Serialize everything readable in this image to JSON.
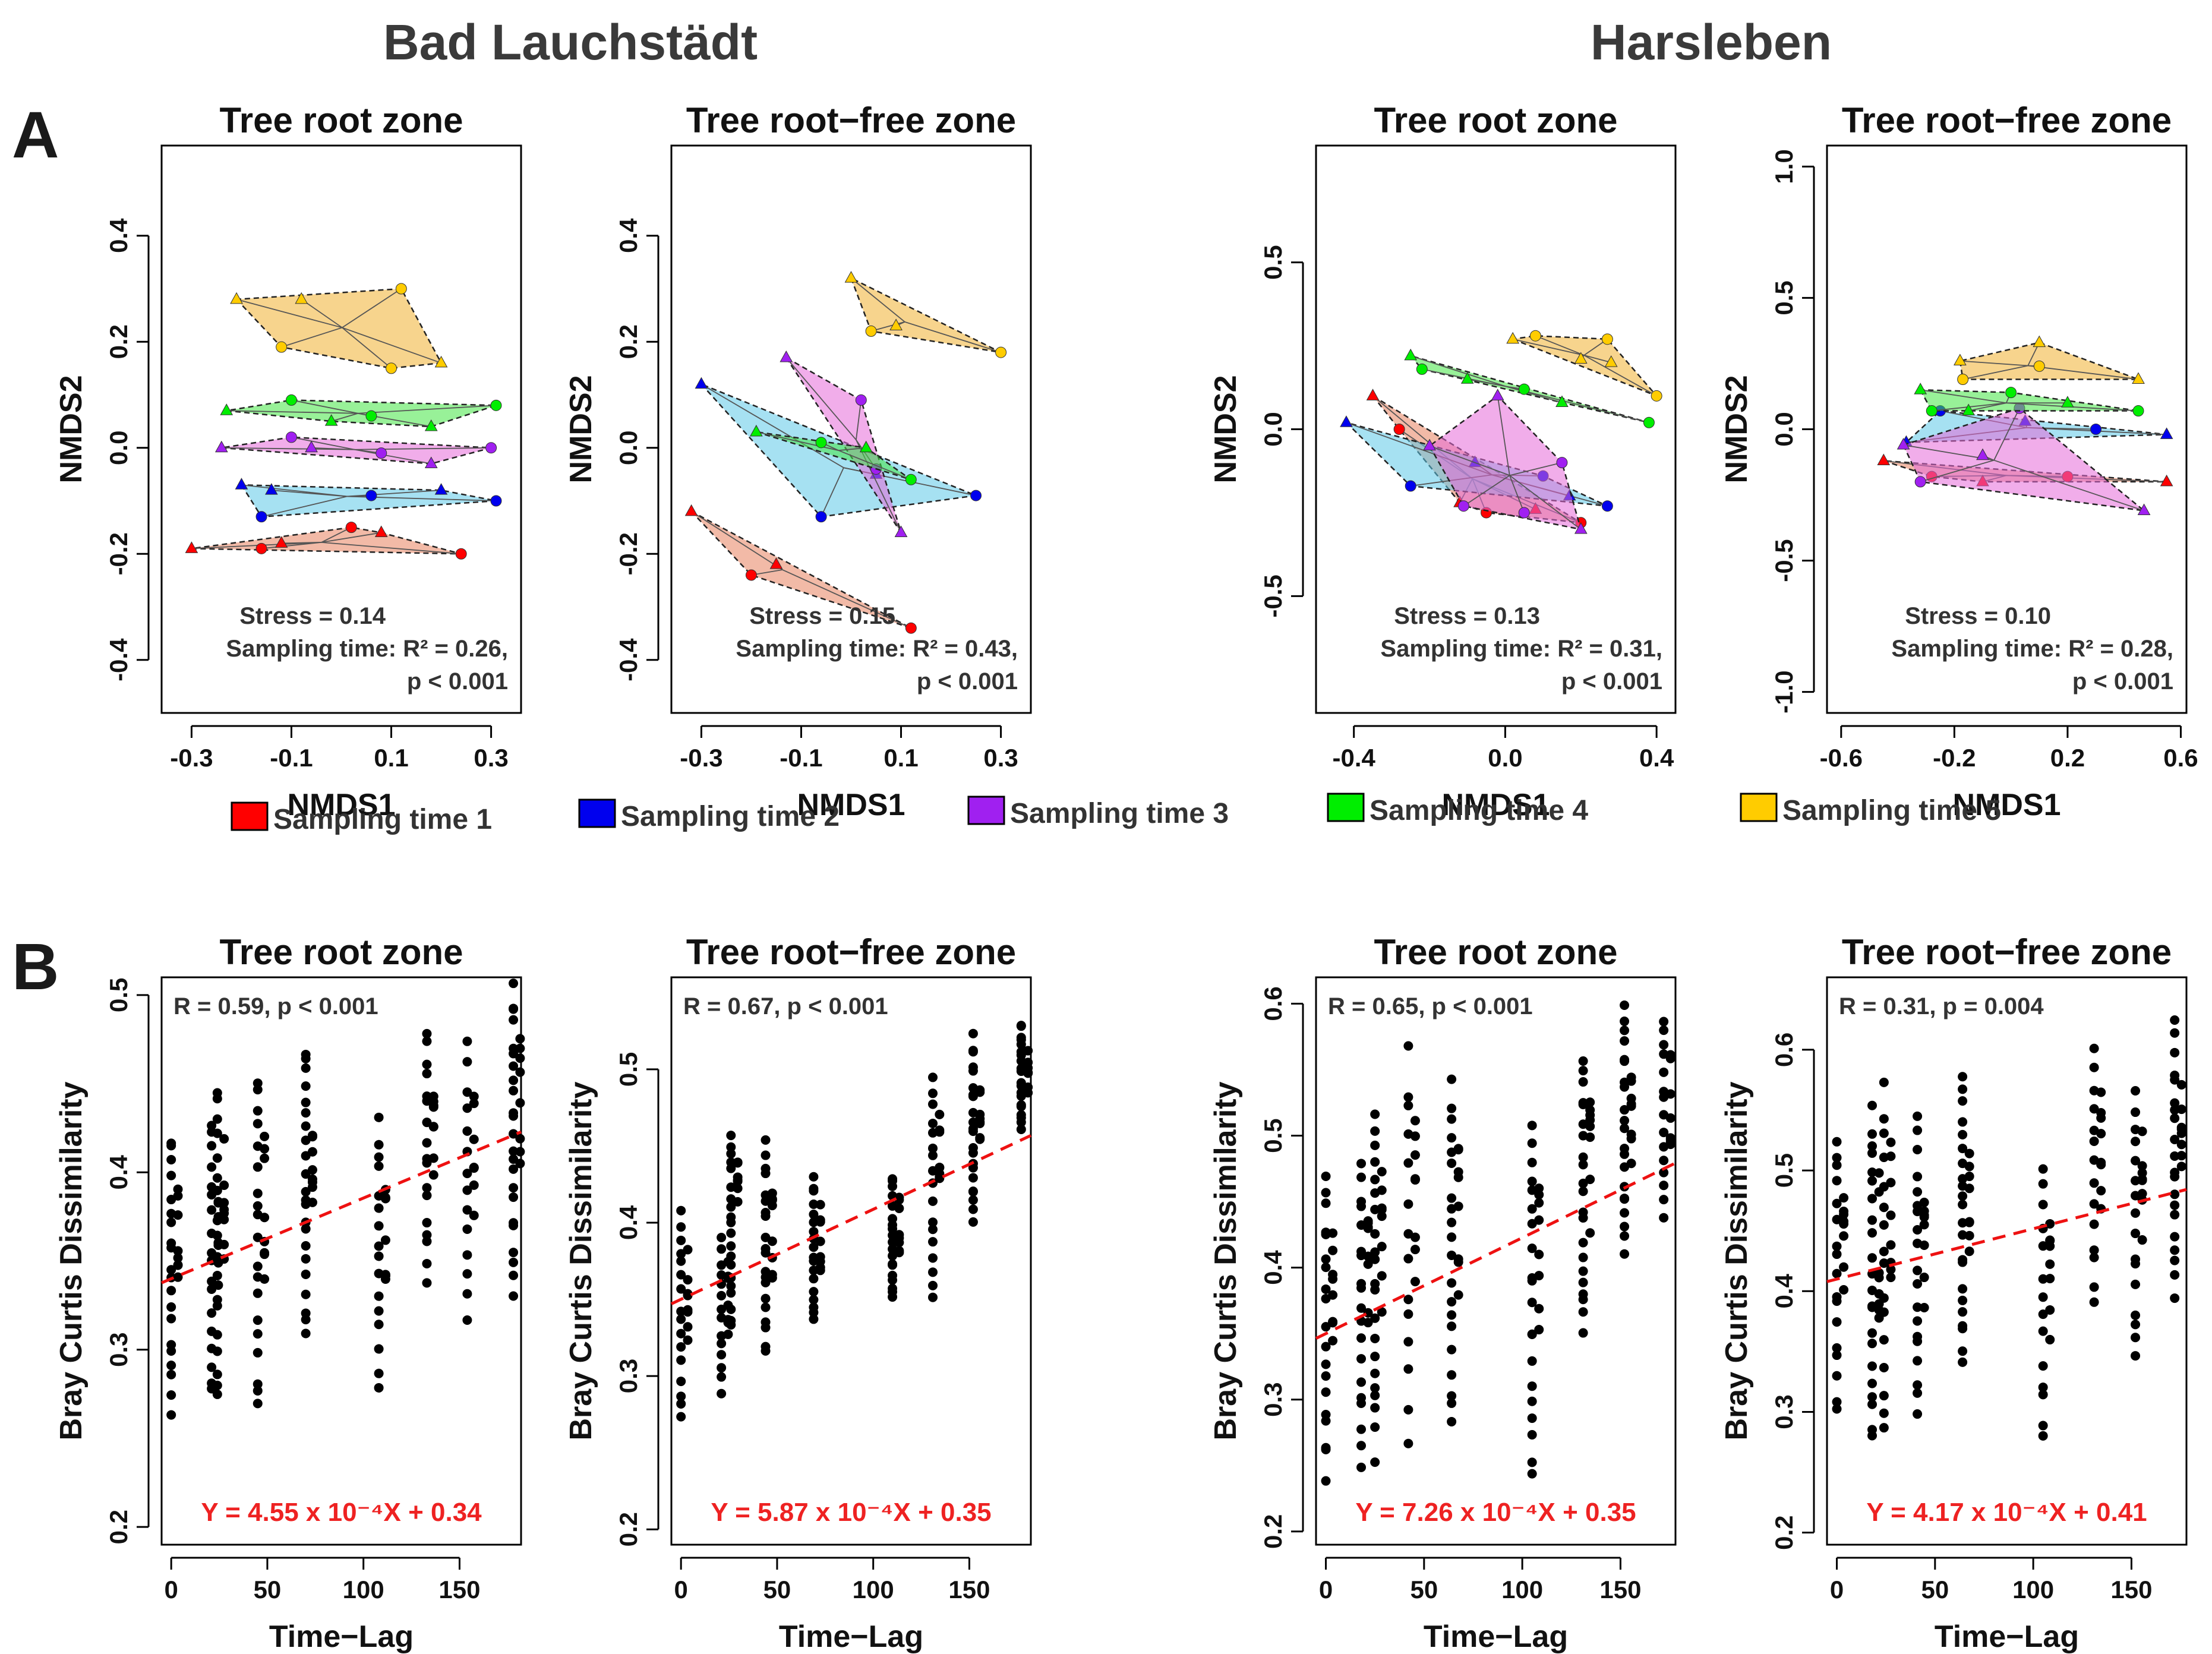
{
  "sites": [
    "Bad Lauchstädt",
    "Harsleben"
  ],
  "row_labels": [
    "A",
    "B"
  ],
  "legend": [
    {
      "label": "Sampling time 1",
      "color": "#ff0000"
    },
    {
      "label": "Sampling time 2",
      "color": "#0000ee"
    },
    {
      "label": "Sampling time 3",
      "color": "#a020f0"
    },
    {
      "label": "Sampling time 4",
      "color": "#00ee00"
    },
    {
      "label": "Sampling time 5",
      "color": "#ffcc00"
    }
  ],
  "chart_data": [
    {
      "id": "A1",
      "type": "scatter",
      "site": "Bad Lauchstädt",
      "title": "Tree root zone",
      "xlabel": "NMDS1",
      "ylabel": "NMDS2",
      "xlim": [
        -0.36,
        0.36
      ],
      "ylim": [
        -0.5,
        0.57
      ],
      "xticks": [
        "-0.3",
        "-0.1",
        "0.1",
        "0.3"
      ],
      "xtick_values": [
        -0.3,
        -0.1,
        0.1,
        0.3
      ],
      "yticks": [
        "-0.4",
        "-0.2",
        "0.0",
        "0.2",
        "0.4"
      ],
      "ytick_values": [
        -0.4,
        -0.2,
        0.0,
        0.2,
        0.4
      ],
      "stress_text": "Stress = 0.14",
      "sampling_text": "Sampling time: R² = 0.26,",
      "p_text": "p < 0.001",
      "series": [
        {
          "name": "Sampling time 1",
          "points": [
            [
              -0.3,
              -0.19
            ],
            [
              -0.16,
              -0.19
            ],
            [
              -0.12,
              -0.18
            ],
            [
              0.02,
              -0.15
            ],
            [
              0.08,
              -0.16
            ],
            [
              0.24,
              -0.2
            ]
          ]
        },
        {
          "name": "Sampling time 2",
          "points": [
            [
              -0.2,
              -0.07
            ],
            [
              -0.16,
              -0.13
            ],
            [
              -0.14,
              -0.08
            ],
            [
              0.06,
              -0.09
            ],
            [
              0.2,
              -0.08
            ],
            [
              0.31,
              -0.1
            ]
          ]
        },
        {
          "name": "Sampling time 3",
          "points": [
            [
              -0.24,
              0.0
            ],
            [
              -0.1,
              0.02
            ],
            [
              -0.06,
              0.0
            ],
            [
              0.08,
              -0.01
            ],
            [
              0.18,
              -0.03
            ],
            [
              0.3,
              0.0
            ]
          ]
        },
        {
          "name": "Sampling time 4",
          "points": [
            [
              -0.23,
              0.07
            ],
            [
              -0.1,
              0.09
            ],
            [
              -0.02,
              0.05
            ],
            [
              0.06,
              0.06
            ],
            [
              0.18,
              0.04
            ],
            [
              0.31,
              0.08
            ]
          ]
        },
        {
          "name": "Sampling time 5",
          "points": [
            [
              -0.21,
              0.28
            ],
            [
              -0.12,
              0.19
            ],
            [
              -0.08,
              0.28
            ],
            [
              0.12,
              0.3
            ],
            [
              0.2,
              0.16
            ],
            [
              0.1,
              0.15
            ]
          ]
        }
      ]
    },
    {
      "id": "A2",
      "type": "scatter",
      "site": "Bad Lauchstädt",
      "title": "Tree root−free zone",
      "xlabel": "NMDS1",
      "ylabel": "NMDS2",
      "xlim": [
        -0.36,
        0.36
      ],
      "ylim": [
        -0.5,
        0.57
      ],
      "xticks": [
        "-0.3",
        "-0.1",
        "0.1",
        "0.3"
      ],
      "xtick_values": [
        -0.3,
        -0.1,
        0.1,
        0.3
      ],
      "yticks": [
        "-0.4",
        "-0.2",
        "0.0",
        "0.2",
        "0.4"
      ],
      "ytick_values": [
        -0.4,
        -0.2,
        0.0,
        0.2,
        0.4
      ],
      "stress_text": "Stress = 0.15",
      "sampling_text": "Sampling time: R² = 0.43,",
      "p_text": "p < 0.001",
      "series": [
        {
          "name": "Sampling time 1",
          "points": [
            [
              -0.32,
              -0.12
            ],
            [
              -0.2,
              -0.24
            ],
            [
              -0.15,
              -0.22
            ],
            [
              0.12,
              -0.34
            ]
          ]
        },
        {
          "name": "Sampling time 2",
          "points": [
            [
              -0.3,
              0.12
            ],
            [
              -0.06,
              -0.13
            ],
            [
              0.05,
              -0.05
            ],
            [
              0.25,
              -0.09
            ]
          ]
        },
        {
          "name": "Sampling time 3",
          "points": [
            [
              -0.13,
              0.17
            ],
            [
              0.02,
              0.09
            ],
            [
              0.1,
              -0.16
            ],
            [
              0.05,
              -0.04
            ]
          ]
        },
        {
          "name": "Sampling time 4",
          "points": [
            [
              -0.19,
              0.03
            ],
            [
              -0.06,
              0.01
            ],
            [
              0.03,
              0.0
            ],
            [
              0.12,
              -0.06
            ]
          ]
        },
        {
          "name": "Sampling time 5",
          "points": [
            [
              0.0,
              0.32
            ],
            [
              0.04,
              0.22
            ],
            [
              0.09,
              0.23
            ],
            [
              0.3,
              0.18
            ]
          ]
        }
      ]
    },
    {
      "id": "A3",
      "type": "scatter",
      "site": "Harsleben",
      "title": "Tree root zone",
      "xlabel": "NMDS1",
      "ylabel": "NMDS2",
      "xlim": [
        -0.5,
        0.45
      ],
      "ylim": [
        -0.85,
        0.85
      ],
      "xticks": [
        "-0.4",
        "0.0",
        "0.4"
      ],
      "xtick_values": [
        -0.4,
        0.0,
        0.4
      ],
      "yticks": [
        "-0.5",
        "0.0",
        "0.5"
      ],
      "ytick_values": [
        -0.5,
        0.0,
        0.5
      ],
      "stress_text": "Stress = 0.13",
      "sampling_text": "Sampling time: R² = 0.31,",
      "p_text": "p < 0.001",
      "series": [
        {
          "name": "Sampling time 1",
          "points": [
            [
              -0.35,
              0.1
            ],
            [
              -0.28,
              0.0
            ],
            [
              -0.12,
              -0.22
            ],
            [
              -0.05,
              -0.25
            ],
            [
              0.08,
              -0.24
            ],
            [
              0.2,
              -0.28
            ]
          ]
        },
        {
          "name": "Sampling time 2",
          "points": [
            [
              -0.42,
              0.02
            ],
            [
              -0.25,
              -0.17
            ],
            [
              -0.08,
              -0.1
            ],
            [
              0.1,
              -0.14
            ],
            [
              0.17,
              -0.2
            ],
            [
              0.27,
              -0.23
            ]
          ]
        },
        {
          "name": "Sampling time 3",
          "points": [
            [
              -0.2,
              -0.05
            ],
            [
              -0.11,
              -0.23
            ],
            [
              -0.02,
              0.1
            ],
            [
              0.15,
              -0.1
            ],
            [
              0.2,
              -0.3
            ],
            [
              0.05,
              -0.25
            ]
          ]
        },
        {
          "name": "Sampling time 4",
          "points": [
            [
              -0.25,
              0.22
            ],
            [
              -0.22,
              0.18
            ],
            [
              -0.1,
              0.15
            ],
            [
              0.05,
              0.12
            ],
            [
              0.15,
              0.08
            ],
            [
              0.38,
              0.02
            ]
          ]
        },
        {
          "name": "Sampling time 5",
          "points": [
            [
              0.02,
              0.27
            ],
            [
              0.08,
              0.28
            ],
            [
              0.2,
              0.21
            ],
            [
              0.27,
              0.27
            ],
            [
              0.28,
              0.2
            ],
            [
              0.4,
              0.1
            ]
          ]
        }
      ]
    },
    {
      "id": "A4",
      "type": "scatter",
      "site": "Harsleben",
      "title": "Tree root−free zone",
      "xlabel": "NMDS1",
      "ylabel": "NMDS2",
      "xlim": [
        -0.65,
        0.62
      ],
      "ylim": [
        -1.08,
        1.08
      ],
      "xticks": [
        "-0.6",
        "-0.2",
        "0.2",
        "0.6"
      ],
      "xtick_values": [
        -0.6,
        -0.2,
        0.2,
        0.6
      ],
      "yticks": [
        "-1.0",
        "-0.5",
        "0.0",
        "0.5",
        "1.0"
      ],
      "ytick_values": [
        -1.0,
        -0.5,
        0.0,
        0.5,
        1.0
      ],
      "stress_text": "Stress = 0.10",
      "sampling_text": "Sampling time: R² = 0.28,",
      "p_text": "p < 0.001",
      "series": [
        {
          "name": "Sampling time 1",
          "points": [
            [
              -0.45,
              -0.12
            ],
            [
              -0.28,
              -0.18
            ],
            [
              -0.1,
              -0.2
            ],
            [
              0.2,
              -0.18
            ],
            [
              0.55,
              -0.2
            ]
          ]
        },
        {
          "name": "Sampling time 2",
          "points": [
            [
              -0.37,
              -0.05
            ],
            [
              -0.25,
              0.07
            ],
            [
              0.05,
              0.03
            ],
            [
              0.3,
              0.0
            ],
            [
              0.55,
              -0.02
            ]
          ]
        },
        {
          "name": "Sampling time 3",
          "points": [
            [
              -0.38,
              -0.06
            ],
            [
              -0.32,
              -0.2
            ],
            [
              -0.1,
              -0.1
            ],
            [
              0.03,
              0.08
            ],
            [
              0.47,
              -0.31
            ]
          ]
        },
        {
          "name": "Sampling time 4",
          "points": [
            [
              -0.32,
              0.15
            ],
            [
              -0.28,
              0.07
            ],
            [
              -0.15,
              0.07
            ],
            [
              0.0,
              0.14
            ],
            [
              0.2,
              0.1
            ],
            [
              0.45,
              0.07
            ]
          ]
        },
        {
          "name": "Sampling time 5",
          "points": [
            [
              -0.18,
              0.26
            ],
            [
              -0.17,
              0.19
            ],
            [
              0.1,
              0.33
            ],
            [
              0.1,
              0.24
            ],
            [
              0.45,
              0.19
            ]
          ]
        }
      ]
    },
    {
      "id": "B1",
      "type": "scatter",
      "site": "Bad Lauchstädt",
      "title": "Tree root zone",
      "xlabel": "Time−Lag",
      "ylabel": "Bray Curtis Dissimilarity",
      "xlim": [
        -5,
        182
      ],
      "ylim": [
        0.19,
        0.51
      ],
      "xticks": [
        "0",
        "50",
        "100",
        "150"
      ],
      "xtick_values": [
        0,
        50,
        100,
        150
      ],
      "yticks": [
        "0.2",
        "0.3",
        "0.4",
        "0.5"
      ],
      "ytick_values": [
        0.2,
        0.3,
        0.4,
        0.5
      ],
      "stat_text": "R = 0.59, p < 0.001",
      "equation_text": "Y = 4.55 x 10⁻⁴X + 0.34",
      "regression": {
        "slope": 0.000455,
        "intercept": 0.34
      },
      "columns": [
        {
          "x": 0,
          "range": [
            0.265,
            0.42
          ]
        },
        {
          "x": 21,
          "range": [
            0.275,
            0.43
          ]
        },
        {
          "x": 24,
          "range": [
            0.27,
            0.45
          ]
        },
        {
          "x": 45,
          "range": [
            0.265,
            0.455
          ]
        },
        {
          "x": 70,
          "range": [
            0.31,
            0.47
          ]
        },
        {
          "x": 108,
          "range": [
            0.28,
            0.43
          ]
        },
        {
          "x": 133,
          "range": [
            0.34,
            0.48
          ]
        },
        {
          "x": 154,
          "range": [
            0.32,
            0.47
          ]
        },
        {
          "x": 178,
          "range": [
            0.335,
            0.505
          ]
        }
      ]
    },
    {
      "id": "B2",
      "type": "scatter",
      "site": "Bad Lauchstädt",
      "title": "Tree root−free zone",
      "xlabel": "Time−Lag",
      "ylabel": "Bray Curtis Dissimilarity",
      "xlim": [
        -5,
        182
      ],
      "ylim": [
        0.19,
        0.56
      ],
      "xticks": [
        "0",
        "50",
        "100",
        "150"
      ],
      "xtick_values": [
        0,
        50,
        100,
        150
      ],
      "yticks": [
        "0.2",
        "0.3",
        "0.4",
        "0.5"
      ],
      "ytick_values": [
        0.2,
        0.3,
        0.4,
        0.5
      ],
      "stat_text": "R = 0.67, p < 0.001",
      "equation_text": "Y = 5.87 x 10⁻⁴X + 0.35",
      "regression": {
        "slope": 0.000587,
        "intercept": 0.35
      },
      "columns": [
        {
          "x": 0,
          "range": [
            0.27,
            0.41
          ]
        },
        {
          "x": 21,
          "range": [
            0.29,
            0.39
          ]
        },
        {
          "x": 26,
          "range": [
            0.33,
            0.46
          ]
        },
        {
          "x": 44,
          "range": [
            0.315,
            0.45
          ]
        },
        {
          "x": 69,
          "range": [
            0.335,
            0.43
          ]
        },
        {
          "x": 110,
          "range": [
            0.35,
            0.43
          ]
        },
        {
          "x": 131,
          "range": [
            0.35,
            0.495
          ]
        },
        {
          "x": 152,
          "range": [
            0.4,
            0.52
          ]
        },
        {
          "x": 177,
          "range": [
            0.46,
            0.53
          ]
        }
      ]
    },
    {
      "id": "B3",
      "type": "scatter",
      "site": "Harsleben",
      "title": "Tree root zone",
      "xlabel": "Time−Lag",
      "ylabel": "Bray Curtis Dissimilarity",
      "xlim": [
        -5,
        178
      ],
      "ylim": [
        0.19,
        0.62
      ],
      "xticks": [
        "0",
        "50",
        "100",
        "150"
      ],
      "xtick_values": [
        0,
        50,
        100,
        150
      ],
      "yticks": [
        "0.2",
        "0.3",
        "0.4",
        "0.5",
        "0.6"
      ],
      "ytick_values": [
        0.2,
        0.3,
        0.4,
        0.5,
        0.6
      ],
      "stat_text": "R = 0.65, p < 0.001",
      "equation_text": "Y = 7.26 x 10⁻⁴X + 0.35",
      "regression": {
        "slope": 0.000726,
        "intercept": 0.35
      },
      "columns": [
        {
          "x": 0,
          "range": [
            0.245,
            0.47
          ]
        },
        {
          "x": 18,
          "range": [
            0.255,
            0.48
          ]
        },
        {
          "x": 25,
          "range": [
            0.26,
            0.52
          ]
        },
        {
          "x": 42,
          "range": [
            0.27,
            0.56
          ]
        },
        {
          "x": 64,
          "range": [
            0.28,
            0.54
          ]
        },
        {
          "x": 105,
          "range": [
            0.245,
            0.51
          ]
        },
        {
          "x": 131,
          "range": [
            0.35,
            0.56
          ]
        },
        {
          "x": 152,
          "range": [
            0.41,
            0.6
          ]
        },
        {
          "x": 172,
          "range": [
            0.44,
            0.59
          ]
        }
      ]
    },
    {
      "id": "B4",
      "type": "scatter",
      "site": "Harsleben",
      "title": "Tree root−free zone",
      "xlabel": "Time−Lag",
      "ylabel": "Bray Curtis Dissimilarity",
      "xlim": [
        -5,
        178
      ],
      "ylim": [
        0.19,
        0.66
      ],
      "xticks": [
        "0",
        "50",
        "100",
        "150"
      ],
      "xtick_values": [
        0,
        50,
        100,
        150
      ],
      "yticks": [
        "0.2",
        "0.3",
        "0.4",
        "0.5",
        "0.6"
      ],
      "ytick_values": [
        0.2,
        0.3,
        0.4,
        0.5,
        0.6
      ],
      "stat_text": "R = 0.31, p = 0.004",
      "equation_text": "Y = 4.17 x 10⁻⁴X + 0.41",
      "regression": {
        "slope": 0.000417,
        "intercept": 0.41
      },
      "columns": [
        {
          "x": 0,
          "range": [
            0.3,
            0.53
          ]
        },
        {
          "x": 18,
          "range": [
            0.28,
            0.55
          ]
        },
        {
          "x": 24,
          "range": [
            0.28,
            0.57
          ]
        },
        {
          "x": 41,
          "range": [
            0.3,
            0.54
          ]
        },
        {
          "x": 64,
          "range": [
            0.34,
            0.58
          ]
        },
        {
          "x": 105,
          "range": [
            0.275,
            0.5
          ]
        },
        {
          "x": 131,
          "range": [
            0.39,
            0.6
          ]
        },
        {
          "x": 152,
          "range": [
            0.34,
            0.57
          ]
        },
        {
          "x": 172,
          "range": [
            0.4,
            0.62
          ]
        }
      ]
    }
  ]
}
